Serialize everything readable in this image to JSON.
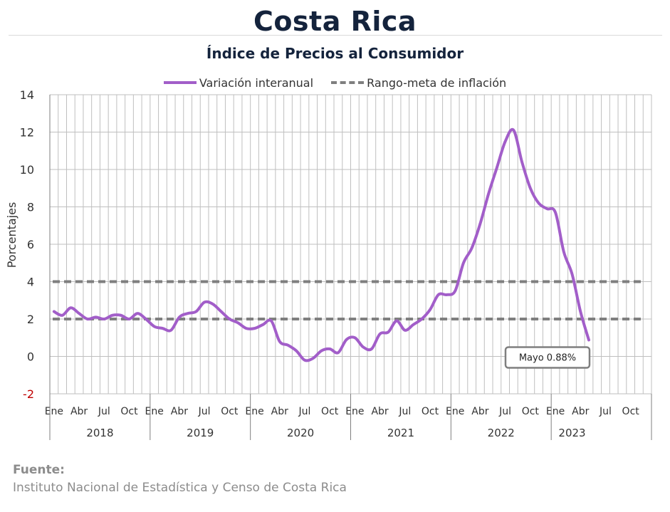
{
  "header": {
    "title": "Costa Rica",
    "subtitle": "Índice de Precios al Consumidor"
  },
  "legend": {
    "series_label": "Variación interanual",
    "target_label": "Rango-meta de inflación"
  },
  "source": {
    "label": "Fuente:",
    "text": "Instituto Nacional de Estadística y Censo de Costa Rica"
  },
  "colors": {
    "series": "#a25ec9",
    "target": "#7f7f7f",
    "grid": "#bfbfbf",
    "negative_tick": "#c00000"
  },
  "chart_data": {
    "type": "line",
    "title": "Índice de Precios al Consumidor",
    "ylabel": "Porcentajes",
    "xlabel": "",
    "ylim": [
      -2,
      14
    ],
    "yticks": [
      -2,
      0,
      2,
      4,
      6,
      8,
      10,
      12,
      14
    ],
    "grid": true,
    "legend_position": "top",
    "month_tick_labels": [
      "Ene",
      "Abr",
      "Jul",
      "Oct"
    ],
    "years": [
      "2018",
      "2019",
      "2020",
      "2021",
      "2022",
      "2023"
    ],
    "x": [
      "2018-01",
      "2018-02",
      "2018-03",
      "2018-04",
      "2018-05",
      "2018-06",
      "2018-07",
      "2018-08",
      "2018-09",
      "2018-10",
      "2018-11",
      "2018-12",
      "2019-01",
      "2019-02",
      "2019-03",
      "2019-04",
      "2019-05",
      "2019-06",
      "2019-07",
      "2019-08",
      "2019-09",
      "2019-10",
      "2019-11",
      "2019-12",
      "2020-01",
      "2020-02",
      "2020-03",
      "2020-04",
      "2020-05",
      "2020-06",
      "2020-07",
      "2020-08",
      "2020-09",
      "2020-10",
      "2020-11",
      "2020-12",
      "2021-01",
      "2021-02",
      "2021-03",
      "2021-04",
      "2021-05",
      "2021-06",
      "2021-07",
      "2021-08",
      "2021-09",
      "2021-10",
      "2021-11",
      "2021-12",
      "2022-01",
      "2022-02",
      "2022-03",
      "2022-04",
      "2022-05",
      "2022-06",
      "2022-07",
      "2022-08",
      "2022-09",
      "2022-10",
      "2022-11",
      "2022-12",
      "2023-01",
      "2023-02",
      "2023-03",
      "2023-04",
      "2023-05"
    ],
    "series": [
      {
        "name": "Variación interanual",
        "values": [
          2.4,
          2.2,
          2.6,
          2.3,
          2.0,
          2.1,
          2.0,
          2.2,
          2.2,
          2.0,
          2.3,
          2.0,
          1.6,
          1.5,
          1.4,
          2.1,
          2.3,
          2.4,
          2.9,
          2.8,
          2.4,
          2.0,
          1.8,
          1.5,
          1.5,
          1.7,
          1.9,
          0.8,
          0.6,
          0.3,
          -0.2,
          -0.1,
          0.3,
          0.4,
          0.2,
          0.9,
          1.0,
          0.5,
          0.4,
          1.2,
          1.3,
          1.9,
          1.4,
          1.7,
          2.0,
          2.5,
          3.3,
          3.3,
          3.5,
          5.0,
          5.8,
          7.1,
          8.7,
          10.1,
          11.5,
          12.1,
          10.4,
          9.0,
          8.2,
          7.9,
          7.7,
          5.6,
          4.4,
          2.4,
          0.88
        ]
      }
    ],
    "target_range": [
      2,
      4
    ],
    "target_label": "Rango-meta de inflación",
    "annotation": "Mayo 0.88%"
  }
}
